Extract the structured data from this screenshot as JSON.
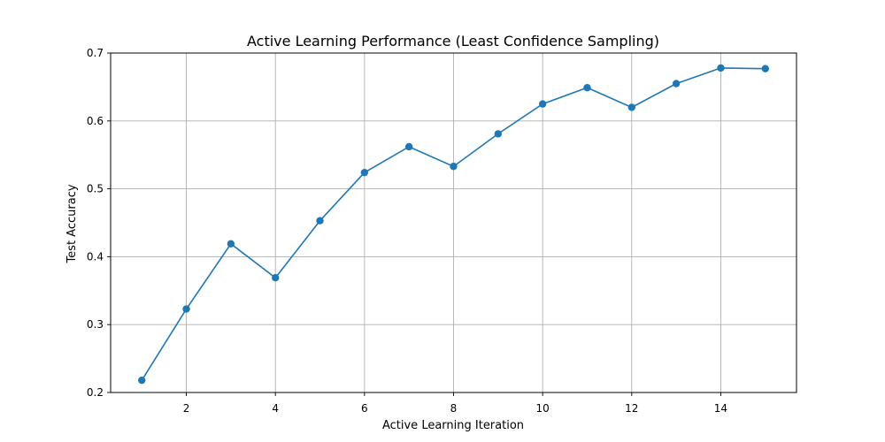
{
  "chart_data": {
    "type": "line",
    "title": "Active Learning Performance (Least Confidence Sampling)",
    "xlabel": "Active Learning Iteration",
    "ylabel": "Test Accuracy",
    "xlim": [
      0.3,
      15.7
    ],
    "ylim": [
      0.2,
      0.7
    ],
    "xticks": [
      2,
      4,
      6,
      8,
      10,
      12,
      14
    ],
    "xtick_labels": [
      "2",
      "4",
      "6",
      "8",
      "10",
      "12",
      "14"
    ],
    "yticks": [
      0.2,
      0.3,
      0.4,
      0.5,
      0.6,
      0.7
    ],
    "ytick_labels": [
      "0.2",
      "0.3",
      "0.4",
      "0.5",
      "0.6",
      "0.7"
    ],
    "grid": true,
    "series": [
      {
        "color": "#1f77b4",
        "marker": "circle",
        "x": [
          1,
          2,
          3,
          4,
          5,
          6,
          7,
          8,
          9,
          10,
          11,
          12,
          13,
          14,
          15
        ],
        "y": [
          0.218,
          0.323,
          0.419,
          0.369,
          0.453,
          0.524,
          0.562,
          0.533,
          0.581,
          0.625,
          0.649,
          0.62,
          0.655,
          0.678,
          0.677
        ]
      }
    ]
  }
}
